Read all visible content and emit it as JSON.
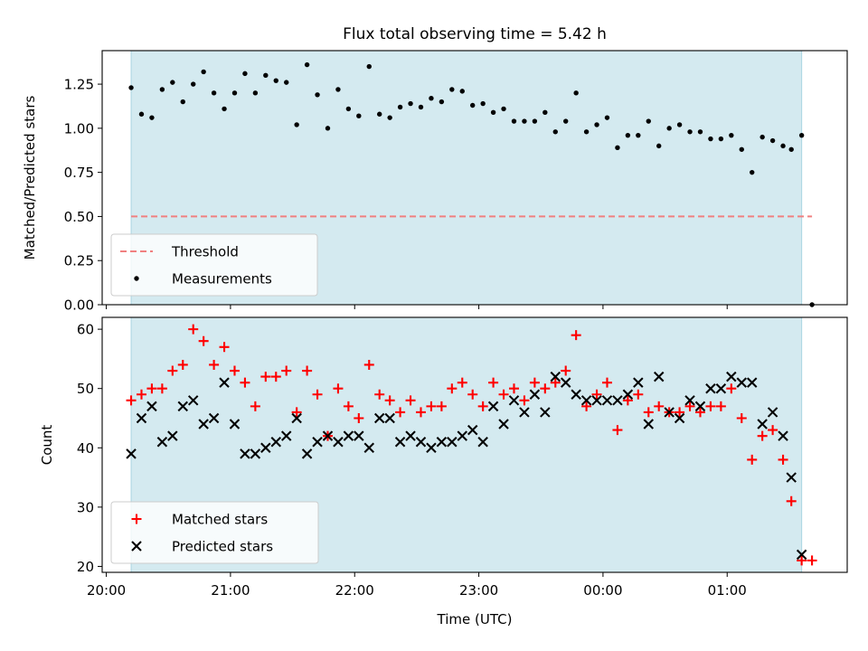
{
  "title": "Flux total observing time = 5.42 h",
  "colors": {
    "band": "#d4eaf0",
    "band_edge": "#a9d5e2",
    "threshold": "#f08080",
    "measurement": "#000000",
    "matched": "#ff0000",
    "predicted": "#000000"
  },
  "chart_data": [
    {
      "type": "scatter",
      "title": "Flux total observing time = 5.42 h",
      "xlabel": "",
      "ylabel": "Matched/Predicted stars",
      "x_unit": "time (UTC)",
      "xlim": [
        "19:58",
        "01:58"
      ],
      "ylim": [
        0,
        1.44
      ],
      "yticks": [
        "0.00",
        "0.25",
        "0.50",
        "0.75",
        "1.00",
        "1.25"
      ],
      "xticks": [
        "20:00",
        "21:00",
        "22:00",
        "23:00",
        "00:00",
        "01:00"
      ],
      "xtick_labels_visible": false,
      "shaded_interval": [
        "20:12",
        "01:36"
      ],
      "legend": {
        "position": "lower-left",
        "entries": [
          "Threshold",
          "Measurements"
        ]
      },
      "threshold": {
        "name": "Threshold",
        "value": 0.5,
        "x": [
          "20:12",
          "01:41"
        ],
        "style": "dashed"
      },
      "series": [
        {
          "name": "Measurements",
          "marker": "dot",
          "points": [
            [
              "20:12",
              1.23
            ],
            [
              "20:17",
              1.08
            ],
            [
              "20:22",
              1.06
            ],
            [
              "20:27",
              1.22
            ],
            [
              "20:32",
              1.26
            ],
            [
              "20:37",
              1.15
            ],
            [
              "20:42",
              1.25
            ],
            [
              "20:47",
              1.32
            ],
            [
              "20:52",
              1.2
            ],
            [
              "20:57",
              1.11
            ],
            [
              "21:02",
              1.2
            ],
            [
              "21:07",
              1.31
            ],
            [
              "21:12",
              1.2
            ],
            [
              "21:17",
              1.3
            ],
            [
              "21:22",
              1.27
            ],
            [
              "21:27",
              1.26
            ],
            [
              "21:32",
              1.02
            ],
            [
              "21:37",
              1.36
            ],
            [
              "21:42",
              1.19
            ],
            [
              "21:47",
              1.0
            ],
            [
              "21:52",
              1.22
            ],
            [
              "21:57",
              1.11
            ],
            [
              "22:02",
              1.07
            ],
            [
              "22:07",
              1.35
            ],
            [
              "22:12",
              1.08
            ],
            [
              "22:17",
              1.06
            ],
            [
              "22:22",
              1.12
            ],
            [
              "22:27",
              1.14
            ],
            [
              "22:32",
              1.12
            ],
            [
              "22:37",
              1.17
            ],
            [
              "22:42",
              1.15
            ],
            [
              "22:47",
              1.22
            ],
            [
              "22:52",
              1.21
            ],
            [
              "22:57",
              1.13
            ],
            [
              "23:02",
              1.14
            ],
            [
              "23:07",
              1.09
            ],
            [
              "23:12",
              1.11
            ],
            [
              "23:17",
              1.04
            ],
            [
              "23:22",
              1.04
            ],
            [
              "23:27",
              1.04
            ],
            [
              "23:32",
              1.09
            ],
            [
              "23:37",
              0.98
            ],
            [
              "23:42",
              1.04
            ],
            [
              "23:47",
              1.2
            ],
            [
              "23:52",
              0.98
            ],
            [
              "23:57",
              1.02
            ],
            [
              "00:02",
              1.06
            ],
            [
              "00:07",
              0.89
            ],
            [
              "00:12",
              0.96
            ],
            [
              "00:17",
              0.96
            ],
            [
              "00:22",
              1.04
            ],
            [
              "00:27",
              0.9
            ],
            [
              "00:32",
              1.0
            ],
            [
              "00:37",
              1.02
            ],
            [
              "00:42",
              0.98
            ],
            [
              "00:47",
              0.98
            ],
            [
              "00:52",
              0.94
            ],
            [
              "00:57",
              0.94
            ],
            [
              "01:02",
              0.96
            ],
            [
              "01:07",
              0.88
            ],
            [
              "01:12",
              0.75
            ],
            [
              "01:17",
              0.95
            ],
            [
              "01:22",
              0.93
            ],
            [
              "01:27",
              0.9
            ],
            [
              "01:31",
              0.88
            ],
            [
              "01:36",
              0.96
            ],
            [
              "01:41",
              0.0
            ]
          ]
        }
      ]
    },
    {
      "type": "scatter",
      "title": "",
      "xlabel": "Time (UTC)",
      "ylabel": "Count",
      "x_unit": "time (UTC)",
      "xlim": [
        "19:58",
        "01:58"
      ],
      "ylim": [
        19,
        62
      ],
      "yticks": [
        "20",
        "30",
        "40",
        "50",
        "60"
      ],
      "xticks": [
        "20:00",
        "21:00",
        "22:00",
        "23:00",
        "00:00",
        "01:00"
      ],
      "shaded_interval": [
        "20:12",
        "01:36"
      ],
      "legend": {
        "position": "lower-left",
        "entries": [
          "Matched stars",
          "Predicted stars"
        ]
      },
      "series": [
        {
          "name": "Matched stars",
          "marker": "plus",
          "points": [
            [
              "20:12",
              48
            ],
            [
              "20:17",
              49
            ],
            [
              "20:22",
              50
            ],
            [
              "20:27",
              50
            ],
            [
              "20:32",
              53
            ],
            [
              "20:37",
              54
            ],
            [
              "20:42",
              60
            ],
            [
              "20:47",
              58
            ],
            [
              "20:52",
              54
            ],
            [
              "20:57",
              57
            ],
            [
              "21:02",
              53
            ],
            [
              "21:07",
              51
            ],
            [
              "21:12",
              47
            ],
            [
              "21:17",
              52
            ],
            [
              "21:22",
              52
            ],
            [
              "21:27",
              53
            ],
            [
              "21:32",
              46
            ],
            [
              "21:37",
              53
            ],
            [
              "21:42",
              49
            ],
            [
              "21:47",
              42
            ],
            [
              "21:52",
              50
            ],
            [
              "21:57",
              47
            ],
            [
              "22:02",
              45
            ],
            [
              "22:07",
              54
            ],
            [
              "22:12",
              49
            ],
            [
              "22:17",
              48
            ],
            [
              "22:22",
              46
            ],
            [
              "22:27",
              48
            ],
            [
              "22:32",
              46
            ],
            [
              "22:37",
              47
            ],
            [
              "22:42",
              47
            ],
            [
              "22:47",
              50
            ],
            [
              "22:52",
              51
            ],
            [
              "22:57",
              49
            ],
            [
              "23:02",
              47
            ],
            [
              "23:07",
              51
            ],
            [
              "23:12",
              49
            ],
            [
              "23:17",
              50
            ],
            [
              "23:22",
              48
            ],
            [
              "23:27",
              51
            ],
            [
              "23:32",
              50
            ],
            [
              "23:37",
              51
            ],
            [
              "23:42",
              53
            ],
            [
              "23:47",
              59
            ],
            [
              "23:52",
              47
            ],
            [
              "23:57",
              49
            ],
            [
              "00:02",
              51
            ],
            [
              "00:07",
              43
            ],
            [
              "00:12",
              48
            ],
            [
              "00:17",
              49
            ],
            [
              "00:22",
              46
            ],
            [
              "00:27",
              47
            ],
            [
              "00:32",
              46
            ],
            [
              "00:37",
              46
            ],
            [
              "00:42",
              47
            ],
            [
              "00:47",
              46
            ],
            [
              "00:52",
              47
            ],
            [
              "00:57",
              47
            ],
            [
              "01:02",
              50
            ],
            [
              "01:07",
              45
            ],
            [
              "01:12",
              38
            ],
            [
              "01:17",
              42
            ],
            [
              "01:22",
              43
            ],
            [
              "01:27",
              38
            ],
            [
              "01:31",
              31
            ],
            [
              "01:36",
              21
            ],
            [
              "01:41",
              21
            ]
          ]
        },
        {
          "name": "Predicted stars",
          "marker": "x",
          "points": [
            [
              "20:12",
              39
            ],
            [
              "20:17",
              45
            ],
            [
              "20:22",
              47
            ],
            [
              "20:27",
              41
            ],
            [
              "20:32",
              42
            ],
            [
              "20:37",
              47
            ],
            [
              "20:42",
              48
            ],
            [
              "20:47",
              44
            ],
            [
              "20:52",
              45
            ],
            [
              "20:57",
              51
            ],
            [
              "21:02",
              44
            ],
            [
              "21:07",
              39
            ],
            [
              "21:12",
              39
            ],
            [
              "21:17",
              40
            ],
            [
              "21:22",
              41
            ],
            [
              "21:27",
              42
            ],
            [
              "21:32",
              45
            ],
            [
              "21:37",
              39
            ],
            [
              "21:42",
              41
            ],
            [
              "21:47",
              42
            ],
            [
              "21:52",
              41
            ],
            [
              "21:57",
              42
            ],
            [
              "22:02",
              42
            ],
            [
              "22:07",
              40
            ],
            [
              "22:12",
              45
            ],
            [
              "22:17",
              45
            ],
            [
              "22:22",
              41
            ],
            [
              "22:27",
              42
            ],
            [
              "22:32",
              41
            ],
            [
              "22:37",
              40
            ],
            [
              "22:42",
              41
            ],
            [
              "22:47",
              41
            ],
            [
              "22:52",
              42
            ],
            [
              "22:57",
              43
            ],
            [
              "23:02",
              41
            ],
            [
              "23:07",
              47
            ],
            [
              "23:12",
              44
            ],
            [
              "23:17",
              48
            ],
            [
              "23:22",
              46
            ],
            [
              "23:27",
              49
            ],
            [
              "23:32",
              46
            ],
            [
              "23:37",
              52
            ],
            [
              "23:42",
              51
            ],
            [
              "23:47",
              49
            ],
            [
              "23:52",
              48
            ],
            [
              "23:57",
              48
            ],
            [
              "00:02",
              48
            ],
            [
              "00:07",
              48
            ],
            [
              "00:12",
              49
            ],
            [
              "00:17",
              51
            ],
            [
              "00:22",
              44
            ],
            [
              "00:27",
              52
            ],
            [
              "00:32",
              46
            ],
            [
              "00:37",
              45
            ],
            [
              "00:42",
              48
            ],
            [
              "00:47",
              47
            ],
            [
              "00:52",
              50
            ],
            [
              "00:57",
              50
            ],
            [
              "01:02",
              52
            ],
            [
              "01:07",
              51
            ],
            [
              "01:12",
              51
            ],
            [
              "01:17",
              44
            ],
            [
              "01:22",
              46
            ],
            [
              "01:27",
              42
            ],
            [
              "01:31",
              35
            ],
            [
              "01:36",
              22
            ]
          ]
        }
      ]
    }
  ]
}
